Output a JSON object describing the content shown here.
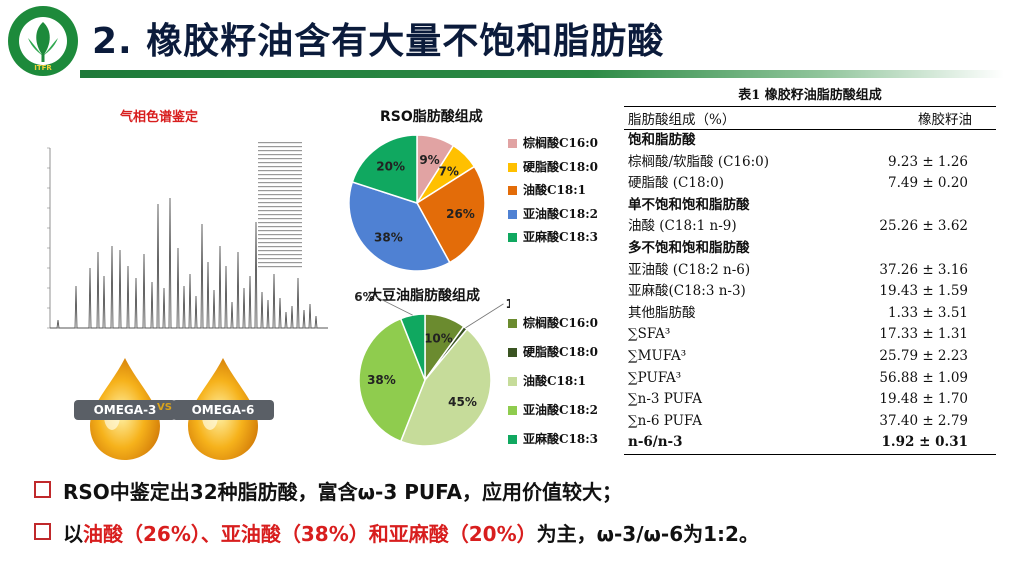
{
  "title": "2. 橡胶籽油含有大量不饱和脂肪酸",
  "gc": {
    "title": "气相色谱鉴定"
  },
  "omega": {
    "left": "OMEGA-3",
    "vs": "VS",
    "right": "OMEGA-6"
  },
  "chart_data": [
    {
      "type": "pie",
      "title": "RSO脂肪酸组成",
      "categories": [
        "棕榈酸C16:0",
        "硬脂酸C18:0",
        "油酸C18:1",
        "亚油酸C18:2",
        "亚麻酸C18:3"
      ],
      "values": [
        9,
        7,
        26,
        38,
        20
      ],
      "labels": [
        "9%",
        "7%",
        "26%",
        "38%",
        "20%"
      ],
      "colors": [
        "#e1a3a3",
        "#ffc000",
        "#e36c09",
        "#4f81d3",
        "#10a860"
      ]
    },
    {
      "type": "pie",
      "title": "大豆油脂肪酸组成",
      "categories": [
        "棕榈酸C16:0",
        "硬脂酸C18:0",
        "油酸C18:1",
        "亚油酸C18:2",
        "亚麻酸C18:3"
      ],
      "values": [
        10,
        1,
        45,
        38,
        6
      ],
      "labels": [
        "10%",
        "1%",
        "45%",
        "38%",
        "6%"
      ],
      "colors": [
        "#6b8b2f",
        "#3a5422",
        "#c6dc9a",
        "#8fcc4e",
        "#10a860"
      ]
    }
  ],
  "table": {
    "caption": "表1 橡胶籽油脂肪酸组成",
    "header": [
      "脂肪酸组成（%）",
      "橡胶籽油"
    ],
    "rows": [
      {
        "label": "饱和脂肪酸",
        "value": "",
        "group": true
      },
      {
        "label": "棕榈酸/软脂酸 (C16:0)",
        "value": "9.23 ± 1.26"
      },
      {
        "label": "硬脂酸 (C18:0)",
        "value": "7.49 ± 0.20"
      },
      {
        "label": "单不饱和饱和脂肪酸",
        "value": "",
        "group": true
      },
      {
        "label": "油酸 (C18:1 n-9)",
        "value": "25.26 ± 3.62"
      },
      {
        "label": "多不饱和饱和脂肪酸",
        "value": "",
        "group": true
      },
      {
        "label": "亚油酸 (C18:2 n-6)",
        "value": "37.26 ± 3.16"
      },
      {
        "label": "亚麻酸(C18:3 n-3)",
        "value": "19.43 ± 1.59"
      },
      {
        "label": "其他脂肪酸",
        "value": "1.33 ± 3.51"
      },
      {
        "label": "∑SFA³",
        "value": "17.33 ± 1.31"
      },
      {
        "label": "∑MUFA³",
        "value": "25.79 ± 2.23"
      },
      {
        "label": "∑PUFA³",
        "value": "56.88 ± 1.09"
      },
      {
        "label": "∑n-3 PUFA",
        "value": "19.48 ± 1.70"
      },
      {
        "label": "∑n-6 PUFA",
        "value": "37.40 ± 2.79"
      },
      {
        "label": "n-6/n-3",
        "value": "1.92 ± 0.31"
      }
    ]
  },
  "bullets": {
    "b1": "RSO中鉴定出32种脂肪酸，富含ω-3 PUFA，应用价值较大；",
    "b2_a": "以",
    "b2_b": "油酸（26%）、亚油酸（38%）和亚麻酸（20%）",
    "b2_c": "为主，ω-3/ω-6为1:2。"
  }
}
